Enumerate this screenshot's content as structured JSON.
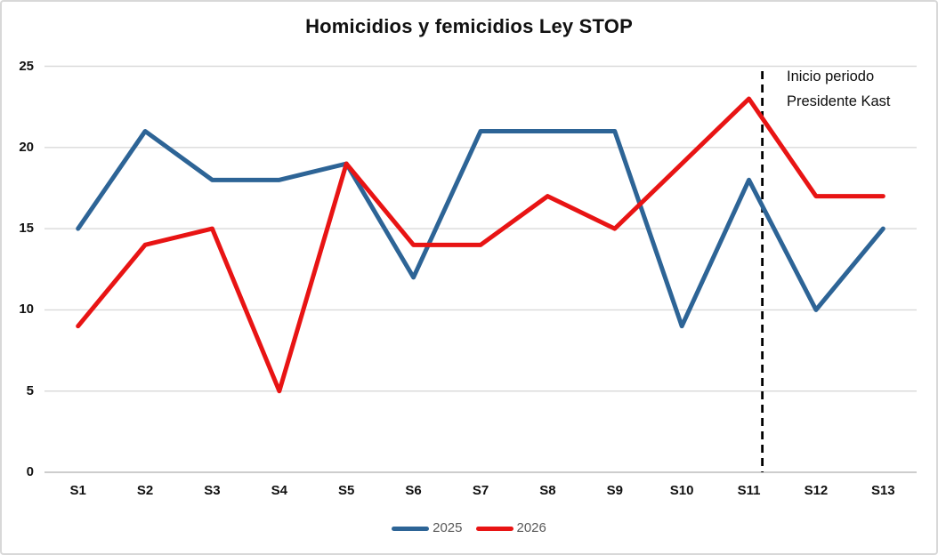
{
  "chart_data": {
    "type": "line",
    "title": "Homicidios y femicidios Ley STOP",
    "categories": [
      "S1",
      "S2",
      "S3",
      "S4",
      "S5",
      "S6",
      "S7",
      "S8",
      "S9",
      "S10",
      "S11",
      "S12",
      "S13"
    ],
    "series": [
      {
        "name": "2025",
        "color": "#2D6496",
        "values": [
          15,
          21,
          18,
          18,
          19,
          12,
          21,
          21,
          21,
          9,
          18,
          10,
          15
        ]
      },
      {
        "name": "2026",
        "color": "#E81414",
        "values": [
          9,
          14,
          15,
          5,
          19,
          14,
          14,
          17,
          15,
          19,
          23,
          17,
          17
        ]
      }
    ],
    "xlabel": "",
    "ylabel": "",
    "ylim": [
      0,
      25
    ],
    "yticks": [
      0,
      5,
      10,
      15,
      20,
      25
    ],
    "grid": true,
    "legend_position": "bottom",
    "annotation": {
      "line1": "Inicio periodo",
      "line2": "Presidente Kast",
      "vline_after_category": "S11",
      "vline_offset": 0.2,
      "vline_style": "dashed",
      "vline_color": "#000000"
    }
  },
  "colors": {
    "gridline": "#D9D9D9",
    "axis_line": "#C6C6C6",
    "background": "#FFFFFF",
    "frame_border": "#D8D8D8",
    "title_text": "#111111",
    "tick_text": "#111111",
    "legend_text": "#595959",
    "annotation_text": "#0D0D0D"
  }
}
